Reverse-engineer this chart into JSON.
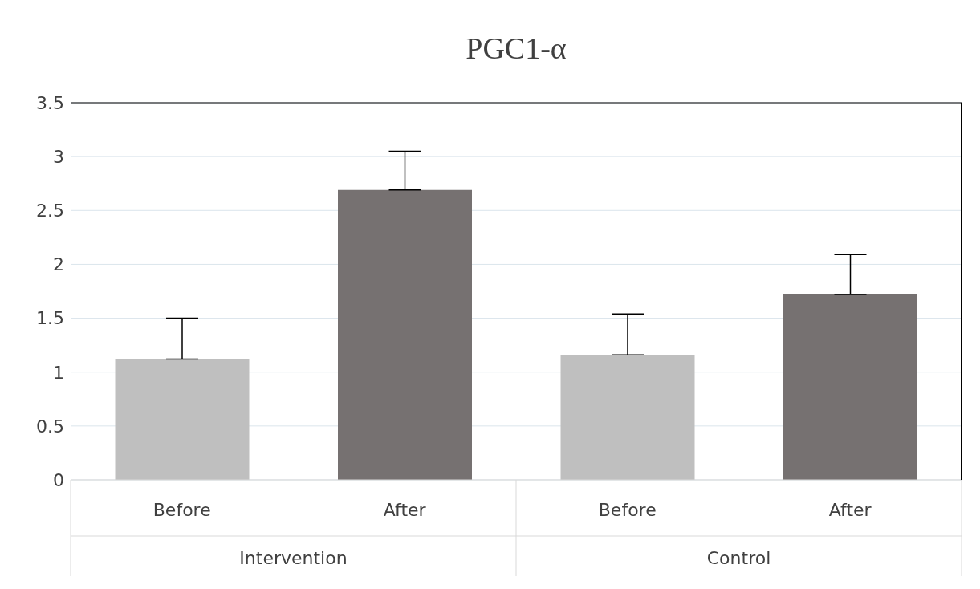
{
  "chart_data": {
    "type": "bar",
    "title": "PGC1-α",
    "categories": [
      "Before",
      "After",
      "Before",
      "After"
    ],
    "values": [
      1.12,
      2.69,
      1.16,
      1.72
    ],
    "colors": [
      "#bfbfbf",
      "#767171",
      "#bfbfbf",
      "#767171"
    ],
    "errors": [
      [
        1.12,
        1.5
      ],
      [
        2.69,
        3.05
      ],
      [
        1.16,
        1.54
      ],
      [
        1.72,
        2.09
      ]
    ],
    "annotations": [
      "Intervention",
      "Control"
    ],
    "ylim": [
      0,
      3.5
    ],
    "yticks": [
      0,
      0.5,
      1,
      1.5,
      2,
      2.5,
      3,
      3.5
    ],
    "grid": "y"
  }
}
